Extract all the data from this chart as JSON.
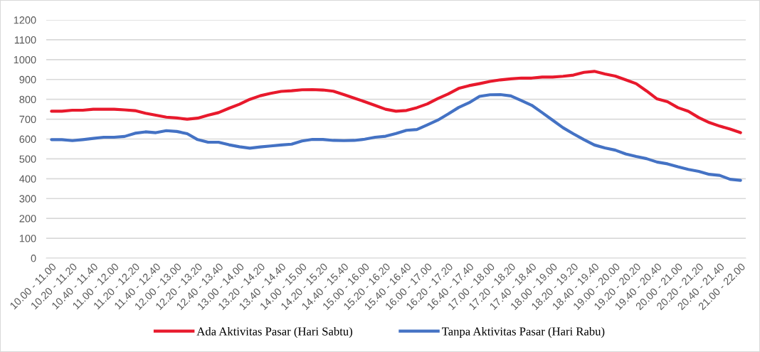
{
  "chart_data": {
    "type": "line",
    "categories": [
      "10.00 - 11.00",
      null,
      "10.20 - 11.20",
      null,
      "10.40 - 11.40",
      null,
      "11.00 - 12.00",
      null,
      "11.20 - 12.20",
      null,
      "11.40 - 12.40",
      null,
      "12.00 - 13.00",
      null,
      "12.20 - 13.20",
      null,
      "12.40 - 13.40",
      null,
      "13.00 - 14.00",
      null,
      "13.20 - 14.20",
      null,
      "13.40 - 14.40",
      null,
      "14.00 - 15.00",
      null,
      "14.20 - 15.20",
      null,
      "14.40 - 15.40",
      null,
      "15.00 - 16.00",
      null,
      "15.20 - 16.20",
      null,
      "15.40 - 16.40",
      null,
      "16.00 - 17.00",
      null,
      "16.20 - 17.20",
      null,
      "16.40 - 17.40",
      null,
      "17.00 - 18.00",
      null,
      "17.20 - 18.20",
      null,
      "17.40 - 18.40",
      null,
      "18.00 - 19.00",
      null,
      "18.20 - 19.20",
      null,
      "18.40 - 19.40",
      null,
      "19.00 - 20.00",
      null,
      "19.20 - 20.20",
      null,
      "19.40 - 20.40",
      null,
      "20.00 - 21.00",
      null,
      "20.20 - 21.20",
      null,
      "20.40 - 21.40",
      null,
      "21.00 - 22.00"
    ],
    "series": [
      {
        "name": "Ada Aktivitas Pasar (Hari Sabtu)",
        "color": "#e8192c",
        "values": [
          740,
          740,
          745,
          745,
          750,
          750,
          750,
          747,
          743,
          730,
          720,
          710,
          706,
          700,
          705,
          720,
          733,
          755,
          775,
          800,
          818,
          830,
          840,
          843,
          848,
          849,
          847,
          841,
          824,
          806,
          788,
          769,
          750,
          740,
          744,
          758,
          777,
          804,
          827,
          855,
          869,
          879,
          890,
          898,
          903,
          907,
          907,
          912,
          912,
          916,
          922,
          936,
          941,
          928,
          917,
          898,
          879,
          842,
          802,
          788,
          758,
          740,
          708,
          683,
          665,
          650,
          632
        ]
      },
      {
        "name": "Tanpa Aktivitas Pasar (Hari Rabu)",
        "color": "#4472c4",
        "values": [
          597,
          597,
          592,
          597,
          603,
          609,
          609,
          613,
          629,
          636,
          632,
          642,
          638,
          627,
          597,
          584,
          584,
          571,
          561,
          554,
          560,
          565,
          570,
          574,
          590,
          598,
          598,
          593,
          592,
          593,
          599,
          609,
          614,
          628,
          644,
          648,
          671,
          695,
          726,
          759,
          783,
          815,
          823,
          824,
          817,
          794,
          770,
          733,
          695,
          657,
          626,
          597,
          570,
          555,
          544,
          525,
          512,
          501,
          484,
          475,
          460,
          447,
          437,
          422,
          417,
          397,
          392
        ]
      }
    ],
    "ylim": [
      0,
      1200
    ],
    "yticks": [
      0,
      100,
      200,
      300,
      400,
      500,
      600,
      700,
      800,
      900,
      1000,
      1100,
      1200
    ],
    "grid": "y",
    "legend": "bottom",
    "marker": "none",
    "line_style": "solid"
  }
}
